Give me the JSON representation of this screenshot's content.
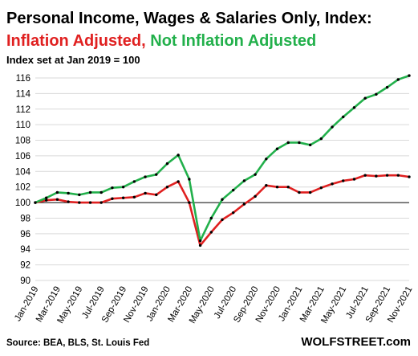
{
  "chart_data": {
    "type": "line",
    "title": "Personal Income, Wages & Salaries Only, Index:",
    "subtitle_parts": [
      {
        "text": "Inflation Adjusted, ",
        "color": "#e02020"
      },
      {
        "text": "Not Inflation Adjusted",
        "color": "#22b04b"
      }
    ],
    "note": "Index set at Jan 2019 = 100",
    "ylim": [
      90,
      116
    ],
    "yticks": [
      90,
      92,
      94,
      96,
      98,
      100,
      102,
      104,
      106,
      108,
      110,
      112,
      114,
      116
    ],
    "baseline": 100,
    "grid": true,
    "x": [
      "Jan-2019",
      "Feb-2019",
      "Mar-2019",
      "Apr-2019",
      "May-2019",
      "Jun-2019",
      "Jul-2019",
      "Aug-2019",
      "Sep-2019",
      "Oct-2019",
      "Nov-2019",
      "Dec-2019",
      "Jan-2020",
      "Feb-2020",
      "Mar-2020",
      "Apr-2020",
      "May-2020",
      "Jun-2020",
      "Jul-2020",
      "Aug-2020",
      "Sep-2020",
      "Oct-2020",
      "Nov-2020",
      "Dec-2020",
      "Jan-2021",
      "Feb-2021",
      "Mar-2021",
      "Apr-2021",
      "May-2021",
      "Jun-2021",
      "Jul-2021",
      "Aug-2021",
      "Sep-2021",
      "Oct-2021",
      "Nov-2021"
    ],
    "xtick_labels": [
      "Jan-2019",
      "Mar-2019",
      "May-2019",
      "Jul-2019",
      "Sep-2019",
      "Nov-2019",
      "Jan-2020",
      "Mar-2020",
      "May-2020",
      "Jul-2020",
      "Sep-2020",
      "Nov-2020",
      "Jan-2021",
      "Mar-2021",
      "May-2021",
      "Jul-2021",
      "Sep-2021",
      "Nov-2021"
    ],
    "series": [
      {
        "name": "Inflation Adjusted",
        "color": "#e02020",
        "values": [
          100.0,
          100.3,
          100.4,
          100.1,
          100.0,
          100.0,
          100.0,
          100.5,
          100.6,
          100.7,
          101.2,
          101.0,
          102.0,
          102.7,
          100.0,
          94.5,
          96.2,
          97.8,
          98.7,
          99.8,
          100.8,
          102.2,
          102.0,
          102.0,
          101.3,
          101.3,
          101.9,
          102.4,
          102.8,
          103.0,
          103.5,
          103.4,
          103.5,
          103.5,
          103.3
        ]
      },
      {
        "name": "Not Inflation Adjusted",
        "color": "#22b04b",
        "values": [
          100.0,
          100.6,
          101.3,
          101.2,
          101.0,
          101.3,
          101.3,
          101.9,
          102.0,
          102.7,
          103.3,
          103.6,
          105.0,
          106.1,
          103.0,
          95.1,
          98.0,
          100.4,
          101.6,
          102.8,
          103.6,
          105.6,
          106.9,
          107.7,
          107.7,
          107.4,
          108.2,
          109.7,
          111.0,
          112.2,
          113.4,
          113.9,
          114.8,
          115.8,
          116.3
        ]
      }
    ],
    "source": "Source: BEA, BLS, St. Louis Fed",
    "brand": "WOLFSTREET.com"
  }
}
